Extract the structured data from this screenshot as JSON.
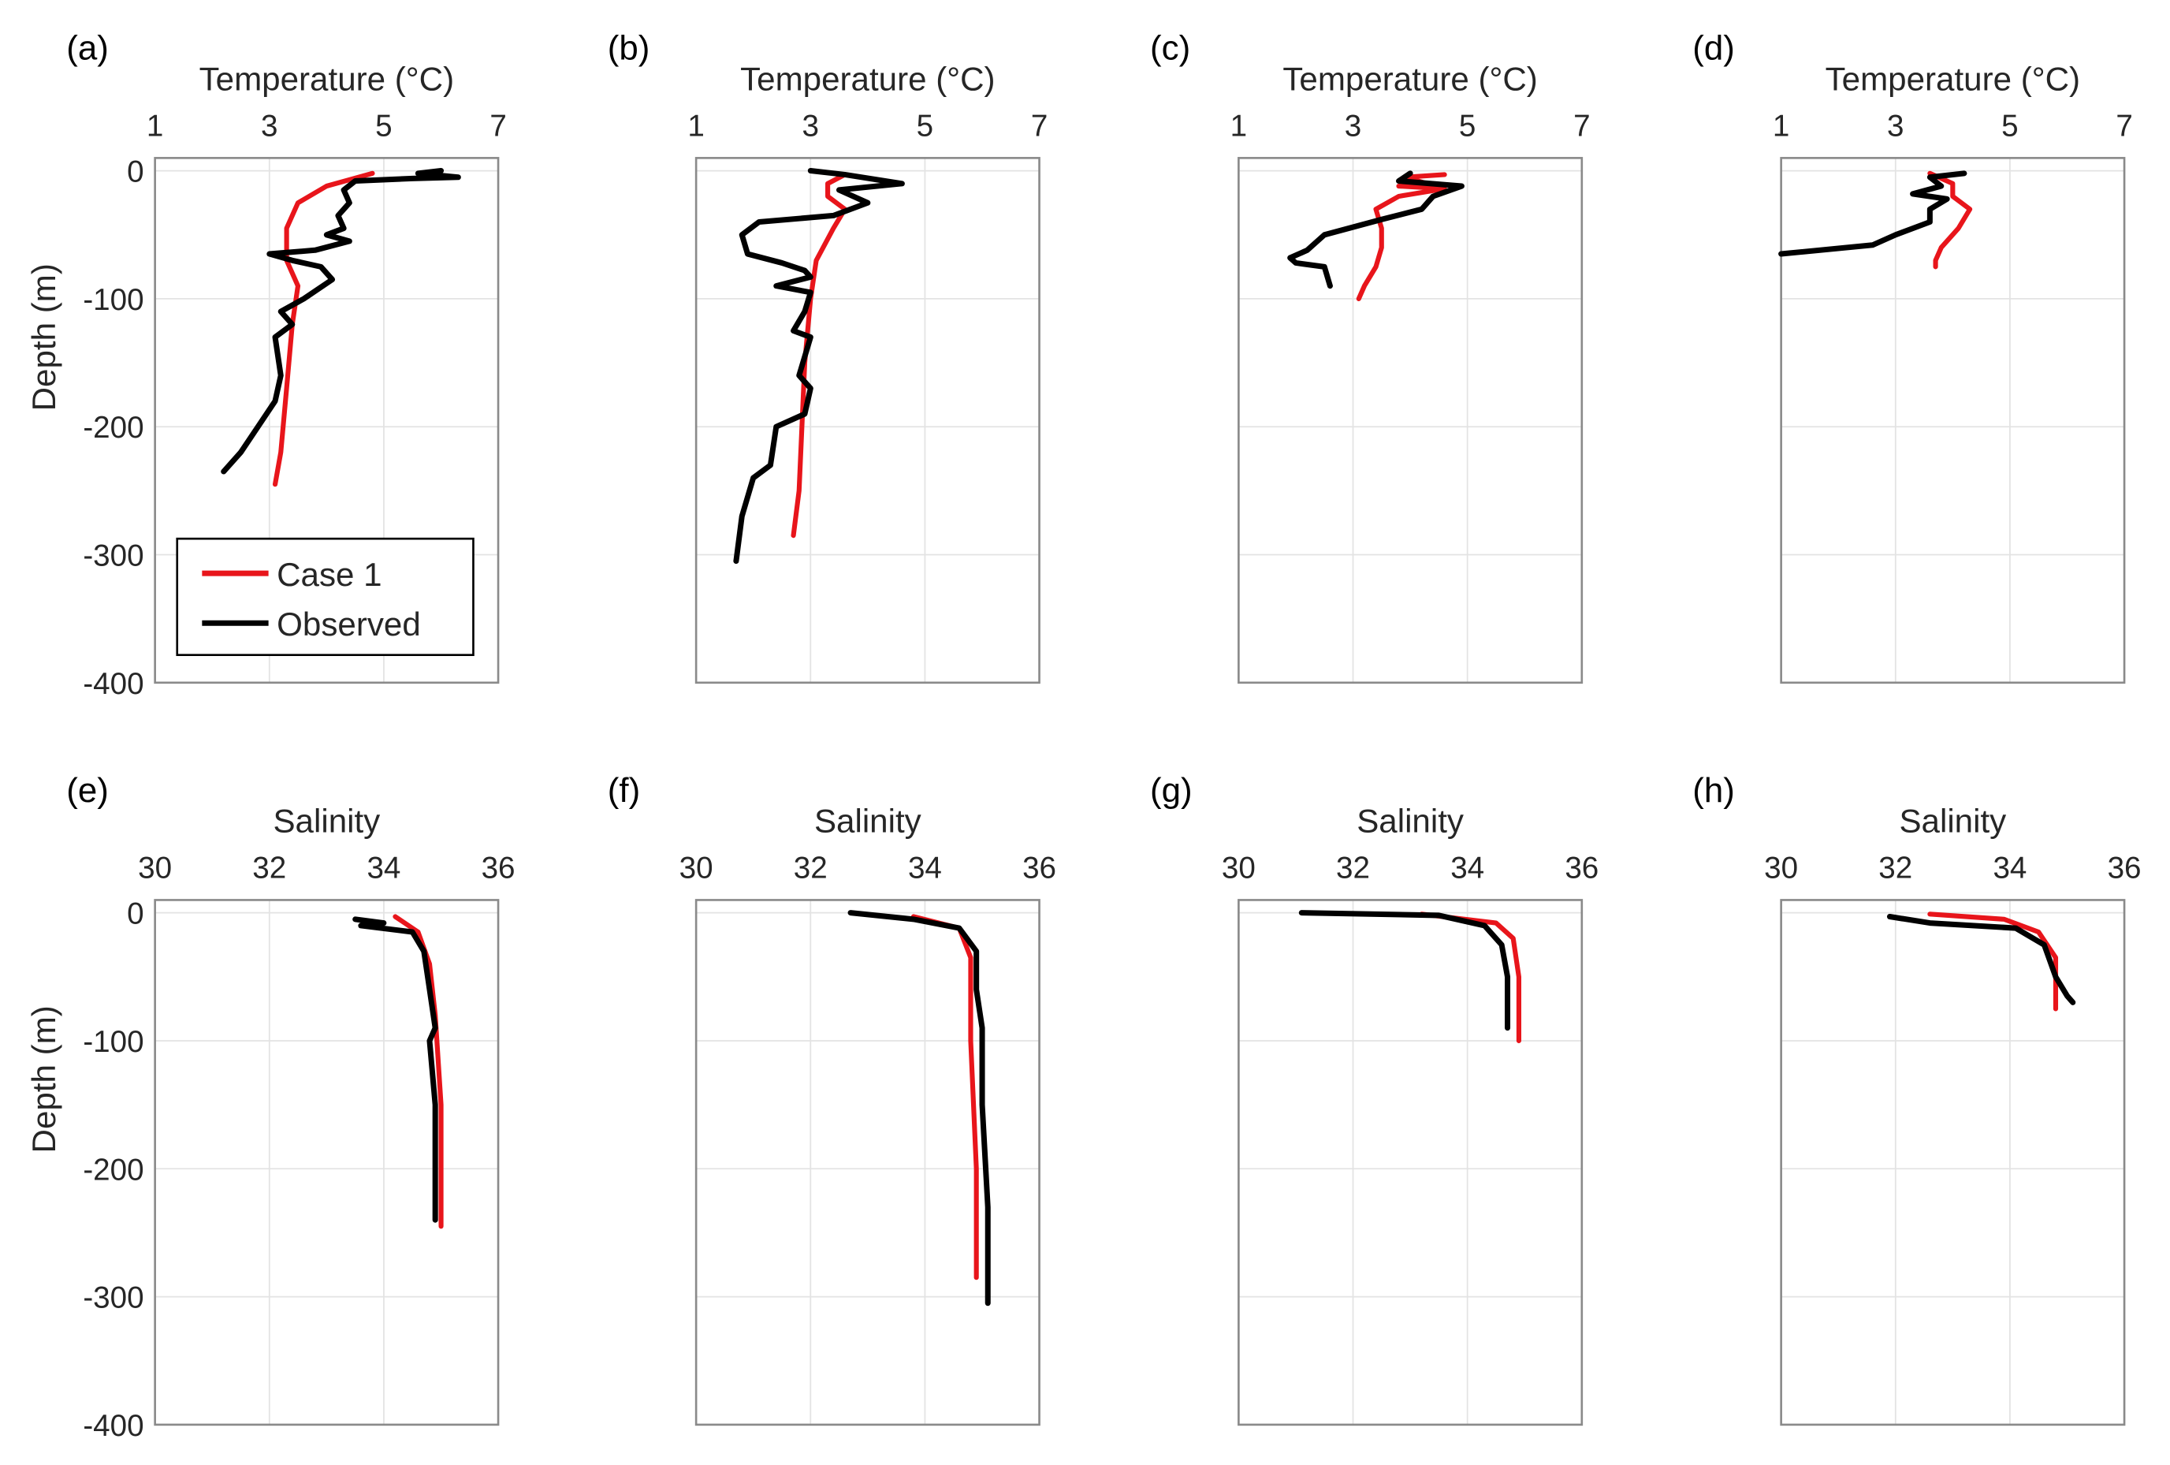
{
  "chart_data": [
    {
      "panel": "(a)",
      "type": "line",
      "xlabel": "Temperature (°C)",
      "ylabel": "Depth (m)",
      "xlim": [
        1,
        7
      ],
      "ylim": [
        -400,
        10
      ],
      "xticks": [
        "1",
        "3",
        "5",
        "7"
      ],
      "yticks": [
        "0",
        "-100",
        "-200",
        "-300",
        "-400"
      ],
      "grid": true,
      "legend": {
        "placement": "bottom-left",
        "entries": [
          "Case 1",
          "Observed"
        ]
      },
      "series": [
        {
          "name": "Case 1",
          "color": "#e8151b",
          "points": [
            [
              4.8,
              -2
            ],
            [
              4.0,
              -12
            ],
            [
              3.5,
              -25
            ],
            [
              3.3,
              -45
            ],
            [
              3.3,
              -70
            ],
            [
              3.5,
              -90
            ],
            [
              3.4,
              -120
            ],
            [
              3.3,
              -170
            ],
            [
              3.2,
              -220
            ],
            [
              3.1,
              -245
            ]
          ]
        },
        {
          "name": "Observed",
          "color": "#000000",
          "points": [
            [
              6.0,
              0
            ],
            [
              5.6,
              -2
            ],
            [
              6.3,
              -5
            ],
            [
              5.5,
              -6
            ],
            [
              4.5,
              -8
            ],
            [
              4.3,
              -15
            ],
            [
              4.4,
              -25
            ],
            [
              4.2,
              -35
            ],
            [
              4.3,
              -45
            ],
            [
              4.0,
              -50
            ],
            [
              4.4,
              -55
            ],
            [
              3.8,
              -62
            ],
            [
              3.0,
              -65
            ],
            [
              3.4,
              -70
            ],
            [
              3.9,
              -75
            ],
            [
              4.1,
              -85
            ],
            [
              3.6,
              -100
            ],
            [
              3.2,
              -110
            ],
            [
              3.4,
              -120
            ],
            [
              3.1,
              -130
            ],
            [
              3.2,
              -160
            ],
            [
              3.1,
              -180
            ],
            [
              2.8,
              -200
            ],
            [
              2.5,
              -220
            ],
            [
              2.2,
              -235
            ]
          ]
        }
      ]
    },
    {
      "panel": "(b)",
      "type": "line",
      "xlabel": "Temperature (°C)",
      "ylabel": "",
      "xlim": [
        1,
        7
      ],
      "ylim": [
        -400,
        10
      ],
      "xticks": [
        "1",
        "3",
        "5",
        "7"
      ],
      "yticks": [],
      "grid": true,
      "series": [
        {
          "name": "Case 1",
          "color": "#e8151b",
          "points": [
            [
              3.6,
              -3
            ],
            [
              3.3,
              -10
            ],
            [
              3.3,
              -20
            ],
            [
              3.6,
              -30
            ],
            [
              3.4,
              -45
            ],
            [
              3.1,
              -70
            ],
            [
              3.0,
              -100
            ],
            [
              2.9,
              -150
            ],
            [
              2.8,
              -250
            ],
            [
              2.7,
              -285
            ]
          ]
        },
        {
          "name": "Observed",
          "color": "#000000",
          "points": [
            [
              3.0,
              0
            ],
            [
              3.6,
              -3
            ],
            [
              4.6,
              -10
            ],
            [
              3.5,
              -15
            ],
            [
              4.0,
              -25
            ],
            [
              3.4,
              -35
            ],
            [
              2.1,
              -40
            ],
            [
              1.8,
              -50
            ],
            [
              1.9,
              -65
            ],
            [
              2.5,
              -72
            ],
            [
              2.9,
              -78
            ],
            [
              3.0,
              -83
            ],
            [
              2.4,
              -90
            ],
            [
              3.0,
              -95
            ],
            [
              2.9,
              -110
            ],
            [
              2.7,
              -125
            ],
            [
              3.0,
              -130
            ],
            [
              2.8,
              -160
            ],
            [
              3.0,
              -170
            ],
            [
              2.9,
              -190
            ],
            [
              2.4,
              -200
            ],
            [
              2.3,
              -230
            ],
            [
              2.0,
              -240
            ],
            [
              1.8,
              -270
            ],
            [
              1.7,
              -305
            ]
          ]
        }
      ]
    },
    {
      "panel": "(c)",
      "type": "line",
      "xlabel": "Temperature (°C)",
      "ylabel": "",
      "xlim": [
        1,
        7
      ],
      "ylim": [
        -400,
        10
      ],
      "xticks": [
        "1",
        "3",
        "5",
        "7"
      ],
      "yticks": [],
      "grid": true,
      "series": [
        {
          "name": "Case 1",
          "color": "#e8151b",
          "points": [
            [
              4.6,
              -3
            ],
            [
              3.9,
              -5
            ],
            [
              4.3,
              -10
            ],
            [
              3.8,
              -12
            ],
            [
              4.6,
              -14
            ],
            [
              3.8,
              -20
            ],
            [
              3.4,
              -30
            ],
            [
              3.5,
              -45
            ],
            [
              3.5,
              -60
            ],
            [
              3.4,
              -75
            ],
            [
              3.2,
              -90
            ],
            [
              3.1,
              -100
            ]
          ]
        },
        {
          "name": "Observed",
          "color": "#000000",
          "points": [
            [
              4.0,
              -2
            ],
            [
              3.8,
              -8
            ],
            [
              4.9,
              -12
            ],
            [
              4.4,
              -20
            ],
            [
              4.2,
              -30
            ],
            [
              3.5,
              -38
            ],
            [
              2.5,
              -50
            ],
            [
              2.2,
              -62
            ],
            [
              1.9,
              -68
            ],
            [
              2.0,
              -72
            ],
            [
              2.5,
              -75
            ],
            [
              2.6,
              -90
            ]
          ]
        }
      ]
    },
    {
      "panel": "(d)",
      "type": "line",
      "xlabel": "Temperature (°C)",
      "ylabel": "",
      "xlim": [
        1,
        7
      ],
      "ylim": [
        -400,
        10
      ],
      "xticks": [
        "1",
        "3",
        "5",
        "7"
      ],
      "yticks": [],
      "grid": true,
      "series": [
        {
          "name": "Case 1",
          "color": "#e8151b",
          "points": [
            [
              3.6,
              -2
            ],
            [
              4.0,
              -10
            ],
            [
              4.0,
              -20
            ],
            [
              4.3,
              -30
            ],
            [
              4.1,
              -45
            ],
            [
              3.8,
              -60
            ],
            [
              3.7,
              -70
            ],
            [
              3.7,
              -75
            ]
          ]
        },
        {
          "name": "Observed",
          "color": "#000000",
          "points": [
            [
              4.2,
              -2
            ],
            [
              3.6,
              -5
            ],
            [
              3.8,
              -12
            ],
            [
              3.3,
              -18
            ],
            [
              3.9,
              -22
            ],
            [
              3.6,
              -30
            ],
            [
              3.6,
              -40
            ],
            [
              3.0,
              -50
            ],
            [
              2.6,
              -58
            ],
            [
              1.0,
              -65
            ]
          ]
        }
      ]
    },
    {
      "panel": "(e)",
      "type": "line",
      "xlabel": "Salinity",
      "ylabel": "Depth (m)",
      "xlim": [
        30,
        36
      ],
      "ylim": [
        -400,
        10
      ],
      "xticks": [
        "30",
        "32",
        "34",
        "36"
      ],
      "yticks": [
        "0",
        "-100",
        "-200",
        "-300",
        "-400"
      ],
      "grid": true,
      "series": [
        {
          "name": "Case 1",
          "color": "#e8151b",
          "points": [
            [
              34.2,
              -3
            ],
            [
              34.6,
              -15
            ],
            [
              34.8,
              -40
            ],
            [
              34.9,
              -80
            ],
            [
              35.0,
              -150
            ],
            [
              35.0,
              -245
            ]
          ]
        },
        {
          "name": "Observed",
          "color": "#000000",
          "points": [
            [
              33.5,
              -5
            ],
            [
              34.0,
              -8
            ],
            [
              33.6,
              -10
            ],
            [
              34.5,
              -15
            ],
            [
              34.7,
              -30
            ],
            [
              34.8,
              -60
            ],
            [
              34.9,
              -90
            ],
            [
              34.8,
              -100
            ],
            [
              34.9,
              -150
            ],
            [
              34.9,
              -240
            ]
          ]
        }
      ]
    },
    {
      "panel": "(f)",
      "type": "line",
      "xlabel": "Salinity",
      "ylabel": "",
      "xlim": [
        30,
        36
      ],
      "ylim": [
        -400,
        10
      ],
      "xticks": [
        "30",
        "32",
        "34",
        "36"
      ],
      "yticks": [],
      "grid": true,
      "series": [
        {
          "name": "Case 1",
          "color": "#e8151b",
          "points": [
            [
              33.8,
              -3
            ],
            [
              34.6,
              -12
            ],
            [
              34.8,
              -35
            ],
            [
              34.8,
              -100
            ],
            [
              34.9,
              -200
            ],
            [
              34.9,
              -285
            ]
          ]
        },
        {
          "name": "Observed",
          "color": "#000000",
          "points": [
            [
              32.7,
              0
            ],
            [
              33.8,
              -5
            ],
            [
              34.6,
              -12
            ],
            [
              34.9,
              -30
            ],
            [
              34.9,
              -60
            ],
            [
              35.0,
              -90
            ],
            [
              35.0,
              -150
            ],
            [
              35.1,
              -230
            ],
            [
              35.1,
              -305
            ]
          ]
        }
      ]
    },
    {
      "panel": "(g)",
      "type": "line",
      "xlabel": "Salinity",
      "ylabel": "",
      "xlim": [
        30,
        36
      ],
      "ylim": [
        -400,
        10
      ],
      "xticks": [
        "30",
        "32",
        "34",
        "36"
      ],
      "yticks": [],
      "grid": true,
      "series": [
        {
          "name": "Case 1",
          "color": "#e8151b",
          "points": [
            [
              33.2,
              -1
            ],
            [
              34.5,
              -8
            ],
            [
              34.8,
              -20
            ],
            [
              34.9,
              -50
            ],
            [
              34.9,
              -100
            ]
          ]
        },
        {
          "name": "Observed",
          "color": "#000000",
          "points": [
            [
              31.1,
              0
            ],
            [
              33.5,
              -2
            ],
            [
              34.3,
              -10
            ],
            [
              34.6,
              -25
            ],
            [
              34.7,
              -50
            ],
            [
              34.7,
              -90
            ]
          ]
        }
      ]
    },
    {
      "panel": "(h)",
      "type": "line",
      "xlabel": "Salinity",
      "ylabel": "",
      "xlim": [
        30,
        36
      ],
      "ylim": [
        -400,
        10
      ],
      "xticks": [
        "30",
        "32",
        "34",
        "36"
      ],
      "yticks": [],
      "grid": true,
      "series": [
        {
          "name": "Case 1",
          "color": "#e8151b",
          "points": [
            [
              32.6,
              -1
            ],
            [
              33.9,
              -5
            ],
            [
              34.5,
              -15
            ],
            [
              34.8,
              -35
            ],
            [
              34.8,
              -75
            ]
          ]
        },
        {
          "name": "Observed",
          "color": "#000000",
          "points": [
            [
              31.9,
              -3
            ],
            [
              32.6,
              -8
            ],
            [
              34.1,
              -12
            ],
            [
              34.6,
              -25
            ],
            [
              34.8,
              -50
            ],
            [
              35.0,
              -65
            ],
            [
              35.1,
              -70
            ]
          ]
        }
      ]
    }
  ]
}
